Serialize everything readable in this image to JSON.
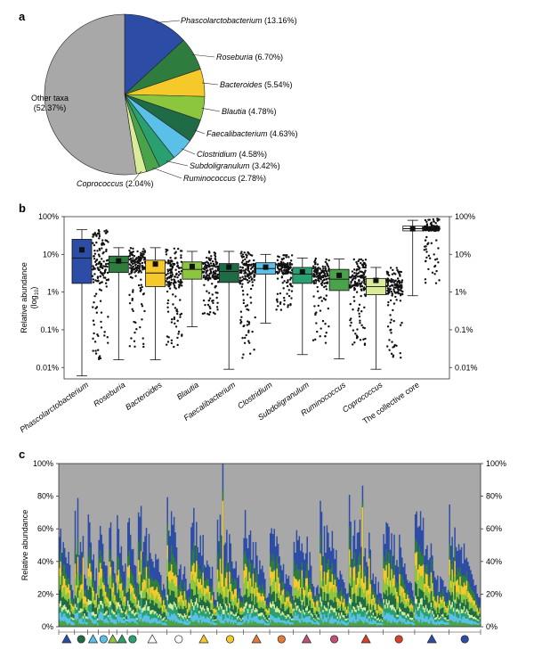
{
  "panel_letters": {
    "a": "a",
    "b": "b",
    "c": "c"
  },
  "colors": {
    "Phascolarctobacterium": "#2c4ca6",
    "Roseburia": "#2e7d3e",
    "Bacteroides": "#f6c92a",
    "Blautia": "#8cc63f",
    "Faecalibacterium": "#1e6b45",
    "Clostridium": "#5bc0e8",
    "Subdoligranulum": "#2aa070",
    "Ruminococcus": "#4aa34a",
    "Coprococcus": "#d8ec9a",
    "Other taxa": "#a8a8a8",
    "The collective core": "#ffffff"
  },
  "chart_data": [
    {
      "type": "pie",
      "panel": "a",
      "slices": [
        {
          "label": "Phascolarctobacterium",
          "value": 13.16,
          "text": "(13.16%)"
        },
        {
          "label": "Roseburia",
          "value": 6.7,
          "text": "(6.70%)"
        },
        {
          "label": "Bacteroides",
          "value": 5.54,
          "text": "(5.54%)"
        },
        {
          "label": "Blautia",
          "value": 4.78,
          "text": "(4.78%)"
        },
        {
          "label": "Faecalibacterium",
          "value": 4.63,
          "text": "(4.63%)"
        },
        {
          "label": "Clostridium",
          "value": 4.58,
          "text": "(4.58%)"
        },
        {
          "label": "Subdoligranulum",
          "value": 3.42,
          "text": "(3.42%)"
        },
        {
          "label": "Ruminococcus",
          "value": 2.78,
          "text": "(2.78%)"
        },
        {
          "label": "Coprococcus",
          "value": 2.04,
          "text": "(2.04%)"
        },
        {
          "label": "Other taxa",
          "value": 52.37,
          "text": "(52.37%)"
        }
      ]
    },
    {
      "type": "box",
      "panel": "b",
      "ylabel": "Relative abundance",
      "ylabel_unit": "(log",
      "ylabel_sub": "10",
      "ylabel_close": ")",
      "yscale": "log",
      "ylim": [
        0.005,
        100
      ],
      "yticks": [
        0.01,
        0.1,
        1,
        10,
        100
      ],
      "yticklabels": [
        "0.01%",
        "0.1%",
        "1%",
        "10%",
        "100%"
      ],
      "groups": [
        {
          "name": "Phascolarctobacterium",
          "min": 0.006,
          "q1": 1.7,
          "median": 8.0,
          "q3": 25,
          "max": 45,
          "mean": 13.16
        },
        {
          "name": "Roseburia",
          "min": 0.016,
          "q1": 3.3,
          "median": 6.0,
          "q3": 9.0,
          "max": 15,
          "mean": 6.7
        },
        {
          "name": "Bacteroides",
          "min": 0.016,
          "q1": 1.4,
          "median": 3.2,
          "q3": 7.0,
          "max": 15,
          "mean": 5.54
        },
        {
          "name": "Blautia",
          "min": 0.12,
          "q1": 2.2,
          "median": 4.0,
          "q3": 6.3,
          "max": 12,
          "mean": 4.78
        },
        {
          "name": "Faecalibacterium",
          "min": 0.009,
          "q1": 1.8,
          "median": 3.5,
          "q3": 5.7,
          "max": 12,
          "mean": 4.63
        },
        {
          "name": "Clostridium",
          "min": 0.15,
          "q1": 3.0,
          "median": 4.2,
          "q3": 6.0,
          "max": 10,
          "mean": 4.58
        },
        {
          "name": "Subdoligranulum",
          "min": 0.022,
          "q1": 1.7,
          "median": 3.0,
          "q3": 4.5,
          "max": 8,
          "mean": 3.42
        },
        {
          "name": "Ruminococcus",
          "min": 0.017,
          "q1": 1.1,
          "median": 2.2,
          "q3": 4.0,
          "max": 7.5,
          "mean": 2.78
        },
        {
          "name": "Coprococcus",
          "min": 0.009,
          "q1": 0.85,
          "median": 1.4,
          "q3": 2.3,
          "max": 4.5,
          "mean": 2.04
        },
        {
          "name": "The collective core",
          "min": 0.8,
          "q1": 42,
          "median": 48,
          "q3": 56,
          "max": 80,
          "mean": 47.63
        }
      ]
    },
    {
      "type": "area",
      "panel": "c",
      "ylabel": "Relative abundance",
      "ylim": [
        0,
        100
      ],
      "yticks": [
        0,
        20,
        40,
        60,
        80,
        100
      ],
      "yticklabels": [
        "0%",
        "20%",
        "40%",
        "60%",
        "80%",
        "100%"
      ],
      "stack_order": [
        "Ruminococcus",
        "Clostridium",
        "Subdoligranulum",
        "Coprococcus",
        "Faecalibacterium",
        "Blautia",
        "Bacteroides",
        "Roseburia",
        "Phascolarctobacterium",
        "Other taxa"
      ],
      "n_samples": 320,
      "group_markers": [
        {
          "shape": "triangle",
          "color": "#2c4ca6"
        },
        {
          "shape": "circle",
          "color": "#1e6b45"
        },
        {
          "shape": "triangle",
          "color": "#5bc0e8"
        },
        {
          "shape": "circle",
          "color": "#5bc0e8"
        },
        {
          "shape": "triangle",
          "color": "#8cc63f"
        },
        {
          "shape": "triangle",
          "color": "#2aa070"
        },
        {
          "shape": "circle",
          "color": "#2aa070"
        },
        {
          "shape": "triangle",
          "color": "#ffffff"
        },
        {
          "shape": "circle",
          "color": "#ffffff"
        },
        {
          "shape": "triangle",
          "color": "#f6c92a"
        },
        {
          "shape": "circle",
          "color": "#f6c92a"
        },
        {
          "shape": "triangle",
          "color": "#e07b39"
        },
        {
          "shape": "circle",
          "color": "#e07b39"
        },
        {
          "shape": "triangle",
          "color": "#c0507a"
        },
        {
          "shape": "circle",
          "color": "#c0507a"
        },
        {
          "shape": "triangle",
          "color": "#d9402b"
        },
        {
          "shape": "circle",
          "color": "#d9402b"
        },
        {
          "shape": "triangle",
          "color": "#2c4ca6"
        },
        {
          "shape": "circle",
          "color": "#2c4ca6"
        }
      ]
    }
  ]
}
